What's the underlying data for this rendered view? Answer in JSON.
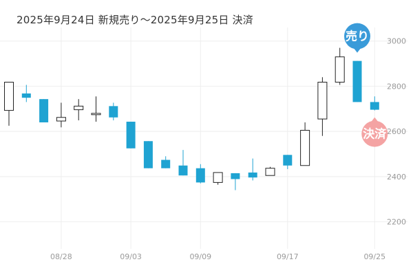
{
  "chart_data": {
    "type": "candlestick",
    "title": "2025年9月24日 新規売り～2025年9月25日 決済",
    "ylim": [
      2080,
      3060
    ],
    "yticks": [
      {
        "value": 3000,
        "label": "3000"
      },
      {
        "value": 2800,
        "label": "2800"
      },
      {
        "value": 2600,
        "label": "2600"
      },
      {
        "value": 2400,
        "label": "2400"
      },
      {
        "value": 2200,
        "label": "2200"
      }
    ],
    "xticks": [
      {
        "index": 3,
        "label": "08/28"
      },
      {
        "index": 7,
        "label": "09/03"
      },
      {
        "index": 11,
        "label": "09/09"
      },
      {
        "index": 16,
        "label": "09/17"
      },
      {
        "index": 21,
        "label": "09/25"
      }
    ],
    "grid": true,
    "colors": {
      "up": "#ffffff",
      "up_border": "#222222",
      "down": "#1fa3d2",
      "grid": "#eeeeee",
      "sell_marker": "#3a9bd9",
      "close_marker": "#f4a3a3"
    },
    "candles": [
      {
        "open": 2693,
        "high": 2818,
        "low": 2625,
        "close": 2818
      },
      {
        "open": 2768,
        "high": 2806,
        "low": 2730,
        "close": 2749
      },
      {
        "open": 2743,
        "high": 2743,
        "low": 2640,
        "close": 2640
      },
      {
        "open": 2646,
        "high": 2727,
        "low": 2618,
        "close": 2662
      },
      {
        "open": 2696,
        "high": 2743,
        "low": 2649,
        "close": 2712
      },
      {
        "open": 2674,
        "high": 2755,
        "low": 2643,
        "close": 2680
      },
      {
        "open": 2712,
        "high": 2727,
        "low": 2649,
        "close": 2662
      },
      {
        "open": 2643,
        "high": 2643,
        "low": 2525,
        "close": 2525
      },
      {
        "open": 2557,
        "high": 2557,
        "low": 2437,
        "close": 2437
      },
      {
        "open": 2474,
        "high": 2490,
        "low": 2437,
        "close": 2437
      },
      {
        "open": 2449,
        "high": 2518,
        "low": 2405,
        "close": 2405
      },
      {
        "open": 2437,
        "high": 2455,
        "low": 2370,
        "close": 2374
      },
      {
        "open": 2374,
        "high": 2418,
        "low": 2364,
        "close": 2418
      },
      {
        "open": 2415,
        "high": 2415,
        "low": 2340,
        "close": 2389
      },
      {
        "open": 2418,
        "high": 2480,
        "low": 2383,
        "close": 2396
      },
      {
        "open": 2405,
        "high": 2443,
        "low": 2405,
        "close": 2437
      },
      {
        "open": 2496,
        "high": 2496,
        "low": 2433,
        "close": 2449
      },
      {
        "open": 2449,
        "high": 2640,
        "low": 2449,
        "close": 2605
      },
      {
        "open": 2655,
        "high": 2840,
        "low": 2580,
        "close": 2818
      },
      {
        "open": 2818,
        "high": 2970,
        "low": 2806,
        "close": 2930
      },
      {
        "open": 2912,
        "high": 2912,
        "low": 2730,
        "close": 2730
      },
      {
        "open": 2730,
        "high": 2755,
        "low": 2693,
        "close": 2696
      }
    ],
    "markers": [
      {
        "index": 20,
        "label": "売り",
        "position": "above"
      },
      {
        "index": 21,
        "label": "決済",
        "position": "below"
      }
    ]
  }
}
